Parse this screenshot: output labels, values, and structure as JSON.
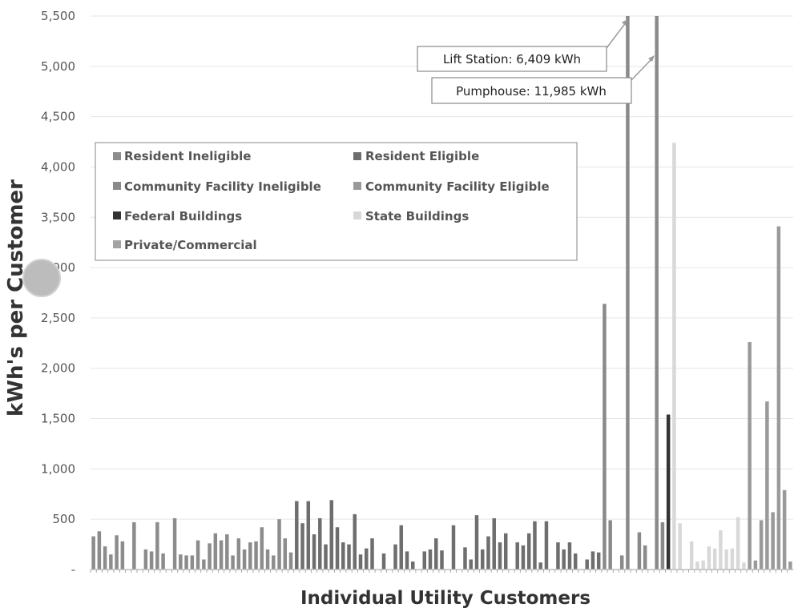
{
  "chart_data": {
    "type": "bar",
    "xlabel": "Individual Utility Customers",
    "ylabel": "kWh's per Customer",
    "ylim": [
      0,
      5500
    ],
    "yticks": [
      0,
      500,
      1000,
      1500,
      2000,
      2500,
      3000,
      3500,
      4000,
      4500,
      5000,
      5500
    ],
    "ytick_labels": [
      "-",
      "500",
      "1,000",
      "1,500",
      "2,000",
      "2,500",
      "3,000",
      "3,500",
      "4,000",
      "4,500",
      "5,000",
      "5,500"
    ],
    "grid": true,
    "legend_position": "upper-left",
    "legend": [
      {
        "name": "Resident Ineligible",
        "color": "#8c8c8c"
      },
      {
        "name": "Resident Eligible",
        "color": "#6e6e6e"
      },
      {
        "name": "Community Facility Ineligible",
        "color": "#8a8a8a"
      },
      {
        "name": "Community Facility Eligible",
        "color": "#9a9a9a"
      },
      {
        "name": "Federal Buildings",
        "color": "#333333"
      },
      {
        "name": "State Buildings",
        "color": "#d8d8d8"
      },
      {
        "name": "Private/Commercial",
        "color": "#a3a3a3"
      }
    ],
    "annotations": [
      {
        "label": "Lift Station: 6,409 kWh",
        "value": 6409
      },
      {
        "label": "Pumphouse: 11,985 kWh",
        "value": 11985
      }
    ],
    "series": [
      {
        "name": "Resident Ineligible",
        "color": "#8c8c8c",
        "values": [
          330,
          380,
          230,
          150,
          340,
          280,
          0,
          470,
          0,
          200,
          180,
          470,
          160,
          0,
          510,
          150,
          140,
          140,
          290,
          100,
          260,
          360,
          290,
          350,
          140,
          310,
          200,
          270,
          280,
          420,
          200,
          140,
          500,
          310,
          170
        ]
      },
      {
        "name": "Resident Eligible",
        "color": "#6e6e6e",
        "values": [
          680,
          460,
          680,
          350,
          510,
          250,
          690,
          420,
          270,
          250,
          550,
          150,
          210,
          310,
          0,
          160,
          0,
          250,
          440,
          180,
          80,
          0,
          180,
          200,
          310,
          190,
          0,
          440,
          0,
          220,
          100,
          540,
          200,
          330,
          510,
          270,
          360,
          0,
          270,
          240,
          360,
          480,
          70,
          480,
          0,
          270,
          200,
          270,
          160,
          0,
          100,
          180,
          170
        ]
      },
      {
        "name": "Community Facility Ineligible",
        "color": "#8a8a8a",
        "values": [
          2640,
          490,
          0,
          140,
          5500,
          0,
          370,
          240,
          0,
          5500,
          470
        ]
      },
      {
        "name": "Federal Buildings",
        "color": "#333333",
        "values": [
          1540
        ]
      },
      {
        "name": "State Buildings",
        "color": "#d8d8d8",
        "values": [
          4240,
          460,
          0,
          280,
          80,
          90,
          230,
          210,
          390,
          200,
          210,
          520,
          70
        ]
      },
      {
        "name": "Community Facility Eligible",
        "color": "#9a9a9a",
        "values": [
          2260,
          90,
          490,
          1670,
          570,
          3410,
          790,
          80
        ]
      }
    ]
  }
}
